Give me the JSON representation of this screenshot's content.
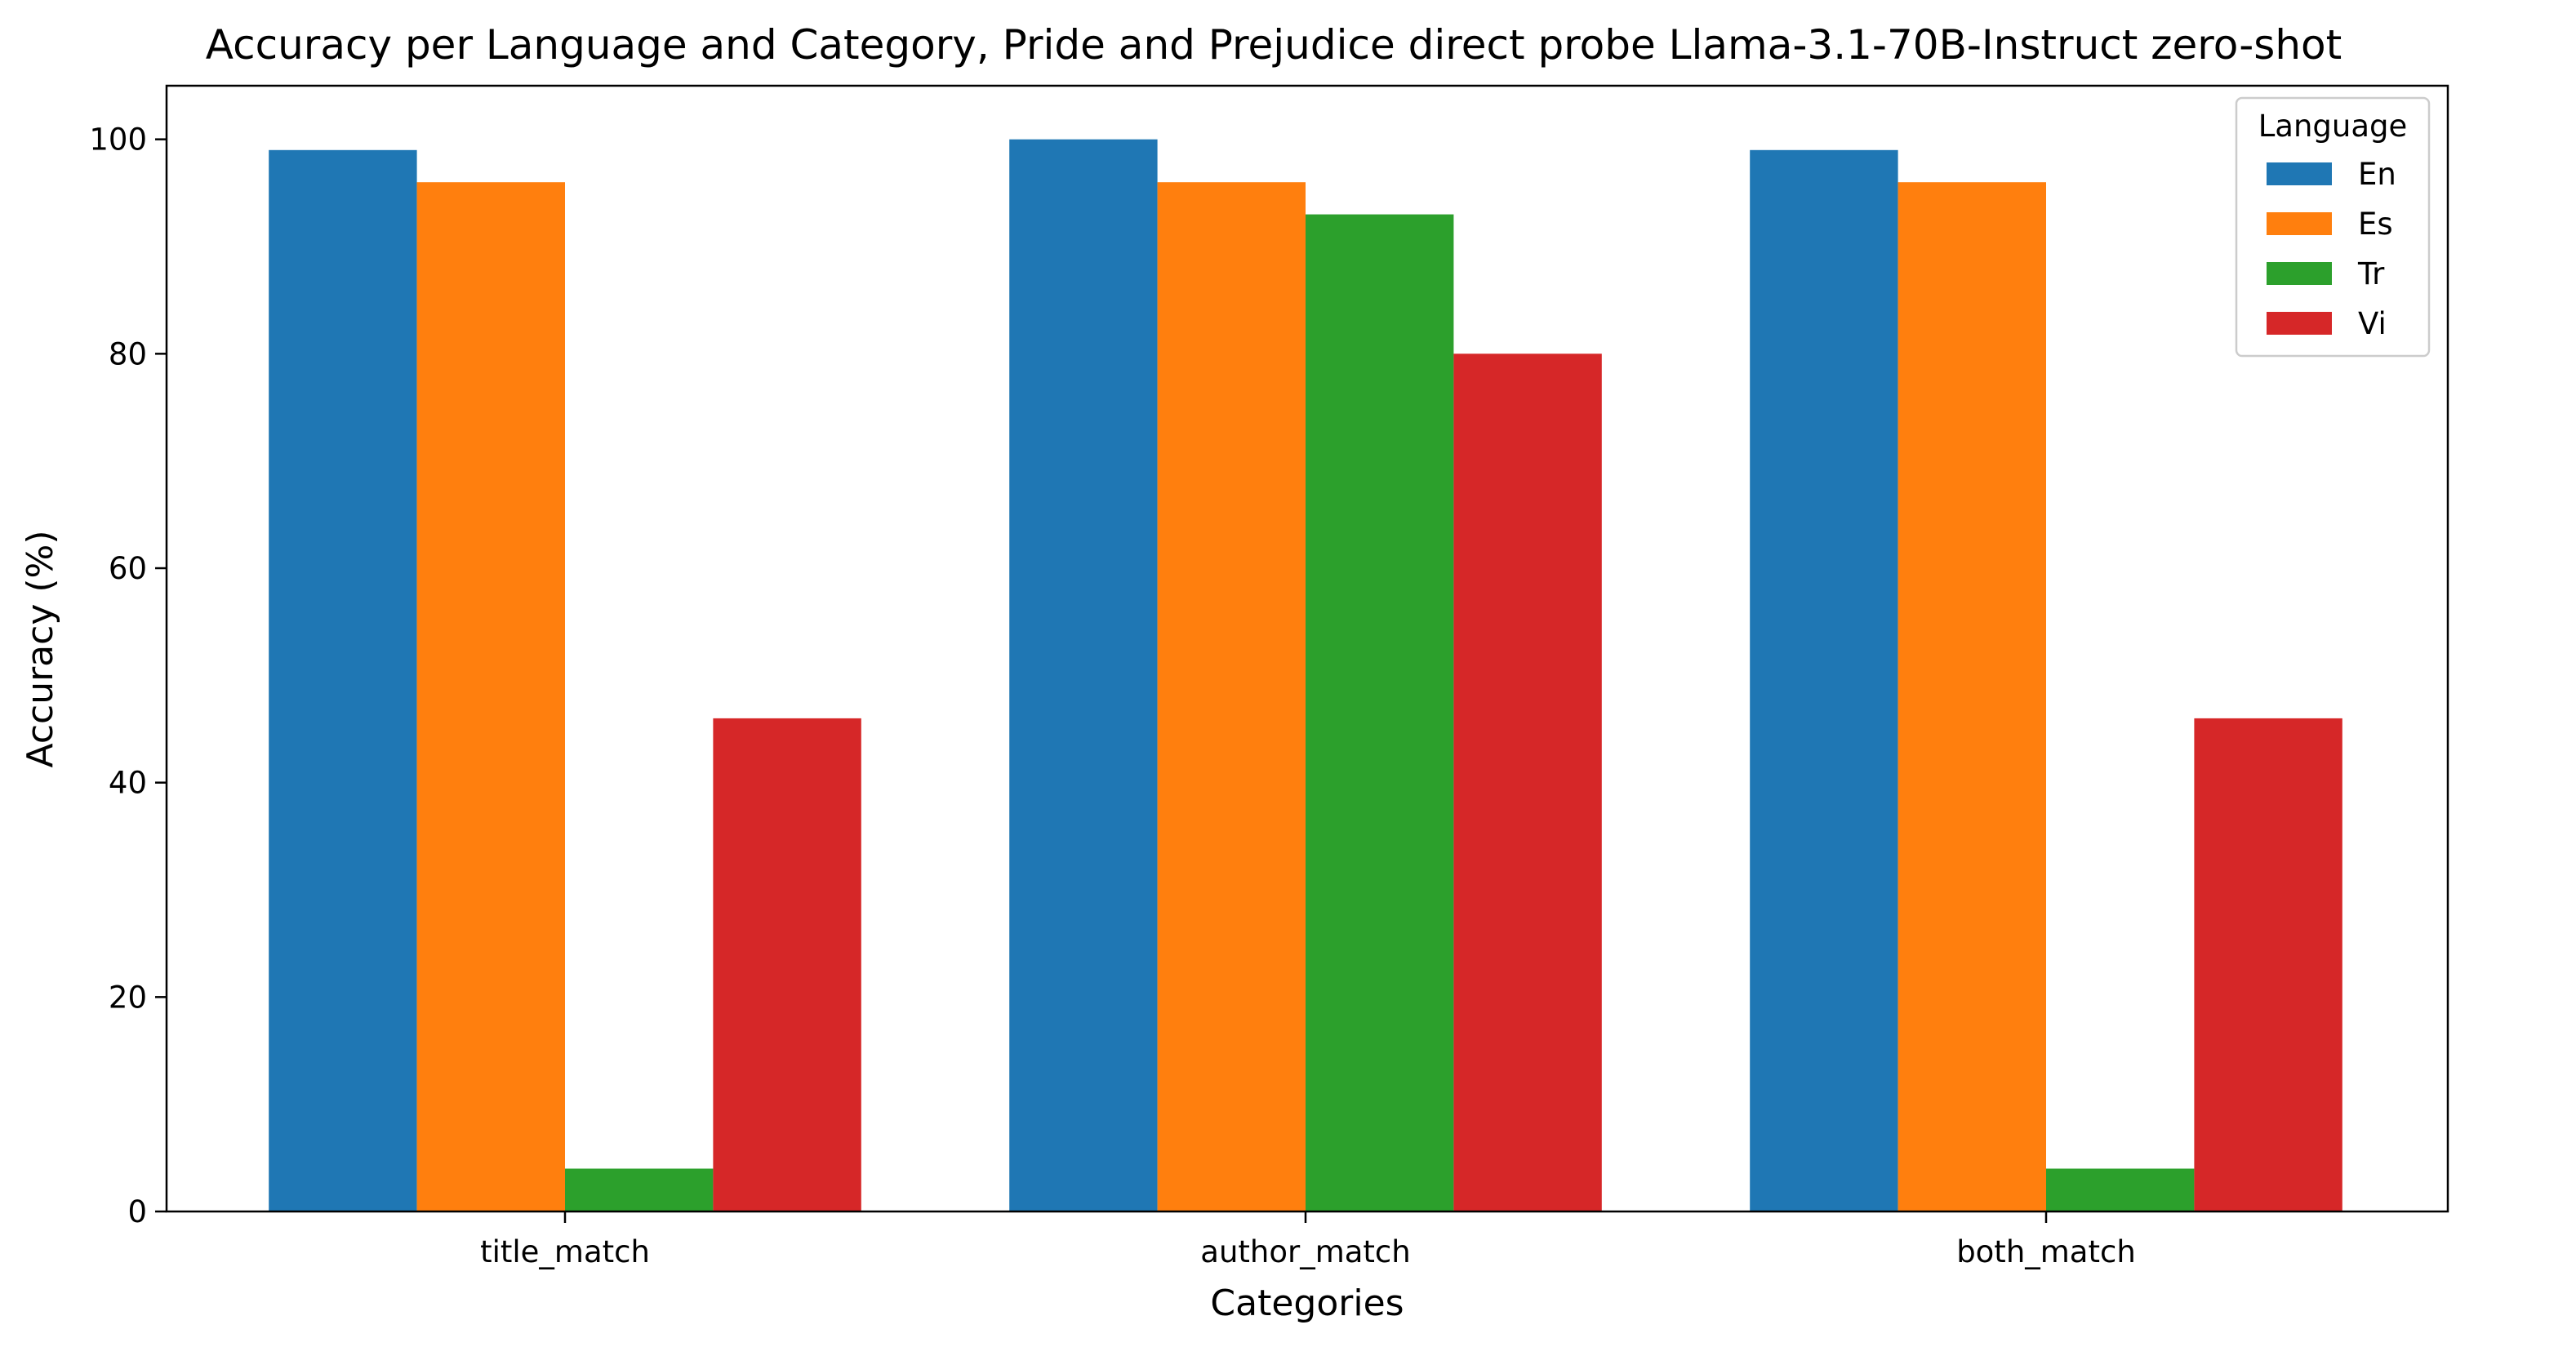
{
  "chart_data": {
    "type": "bar",
    "title": "Accuracy per Language and Category, Pride and Prejudice direct probe Llama-3.1-70B-Instruct zero-shot",
    "xlabel": "Categories",
    "ylabel": "Accuracy (%)",
    "categories": [
      "title_match",
      "author_match",
      "both_match"
    ],
    "series": [
      {
        "name": "En",
        "color": "#1f77b4",
        "values": [
          99,
          100,
          99
        ]
      },
      {
        "name": "Es",
        "color": "#ff7f0e",
        "values": [
          96,
          96,
          96
        ]
      },
      {
        "name": "Tr",
        "color": "#2ca02c",
        "values": [
          4,
          93,
          4
        ]
      },
      {
        "name": "Vi",
        "color": "#d62728",
        "values": [
          46,
          80,
          46
        ]
      }
    ],
    "ylim": [
      0,
      105
    ],
    "yticks": [
      0,
      20,
      40,
      60,
      80,
      100
    ],
    "grid": false,
    "legend": {
      "title": "Language",
      "placement": "top-right"
    }
  }
}
